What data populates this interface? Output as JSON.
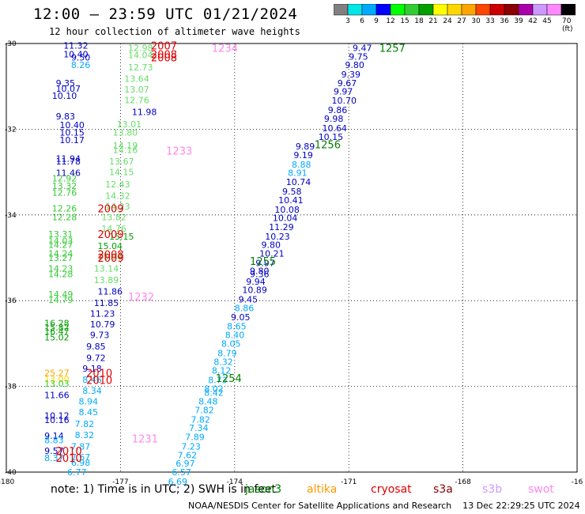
{
  "header": {
    "title": "12:00 — 23:59 UTC 01/21/2024",
    "subtitle": "12 hour collection of altimeter wave heights"
  },
  "colorbar": {
    "colors": [
      "#808080",
      "#00e5e5",
      "#00aaff",
      "#0000ff",
      "#00ff00",
      "#32cd32",
      "#00a000",
      "#ffff00",
      "#ffd700",
      "#ffa500",
      "#ff4500",
      "#cc0000",
      "#8b0000",
      "#aa00aa",
      "#cc99ff",
      "#ff88ff",
      "#000000"
    ],
    "labels": [
      "3",
      "6",
      "9",
      "12",
      "15",
      "18",
      "21",
      "24",
      "27",
      "30",
      "33",
      "36",
      "39",
      "42",
      "45",
      "70 (ft)"
    ]
  },
  "axes": {
    "lon_ticks": [
      "-180",
      "-177",
      "-174",
      "-171",
      "-168",
      "-16"
    ],
    "lat_ticks": [
      "-30",
      "-32",
      "-34",
      "-36",
      "-38",
      "-40"
    ]
  },
  "tracks": [
    {
      "label": "2007",
      "color": "#e00000",
      "lon": -176.2,
      "lat": -30.05
    },
    {
      "label": "2008",
      "color": "#e00000",
      "lon": -176.2,
      "lat": -30.25
    },
    {
      "label": "2008",
      "color": "#e00000",
      "lon": -176.2,
      "lat": -30.32
    },
    {
      "label": "1234",
      "color": "#ff88ee",
      "lon": -174.6,
      "lat": -30.1
    },
    {
      "label": "1257",
      "color": "#008000",
      "lon": -170.2,
      "lat": -30.1
    },
    {
      "label": "1256",
      "color": "#008000",
      "lon": -171.9,
      "lat": -32.35
    },
    {
      "label": "1233",
      "color": "#ff88ee",
      "lon": -175.8,
      "lat": -32.5
    },
    {
      "label": "2009",
      "color": "#e00000",
      "lon": -177.6,
      "lat": -33.85
    },
    {
      "label": "2009",
      "color": "#e00000",
      "lon": -177.6,
      "lat": -34.45
    },
    {
      "label": "2008",
      "color": "#e00000",
      "lon": -177.6,
      "lat": -34.92
    },
    {
      "label": "2009",
      "color": "#e00000",
      "lon": -177.6,
      "lat": -35.0
    },
    {
      "label": "1255",
      "color": "#008000",
      "lon": -173.6,
      "lat": -35.07
    },
    {
      "label": "1232",
      "color": "#ff88ee",
      "lon": -176.8,
      "lat": -35.9
    },
    {
      "label": "2010",
      "color": "#e00000",
      "lon": -177.9,
      "lat": -37.68
    },
    {
      "label": "2010",
      "color": "#e00000",
      "lon": -177.9,
      "lat": -37.85
    },
    {
      "label": "1254",
      "color": "#008000",
      "lon": -174.5,
      "lat": -37.8
    },
    {
      "label": "1231",
      "color": "#ff88ee",
      "lon": -176.7,
      "lat": -39.22
    },
    {
      "label": "2010",
      "color": "#e00000",
      "lon": -178.7,
      "lat": -39.5
    },
    {
      "label": "2010",
      "color": "#e00000",
      "lon": -178.7,
      "lat": -39.67
    }
  ],
  "wave_heights": [
    {
      "v": "11.32",
      "c": "#0000c0",
      "lon": -178.5,
      "lat": -30.05
    },
    {
      "v": "10.40",
      "c": "#0000c0",
      "lon": -178.5,
      "lat": -30.25
    },
    {
      "v": "9.50",
      "c": "#0000c0",
      "lon": -178.3,
      "lat": -30.32
    },
    {
      "v": "8.26",
      "c": "#00aaff",
      "lon": -178.3,
      "lat": -30.5
    },
    {
      "v": "9.35",
      "c": "#0000c0",
      "lon": -178.7,
      "lat": -30.92
    },
    {
      "v": "10.07",
      "c": "#0000c0",
      "lon": -178.7,
      "lat": -31.05
    },
    {
      "v": "10.10",
      "c": "#0000c0",
      "lon": -178.8,
      "lat": -31.22
    },
    {
      "v": "9.83",
      "c": "#0000c0",
      "lon": -178.7,
      "lat": -31.7
    },
    {
      "v": "10.40",
      "c": "#0000c0",
      "lon": -178.6,
      "lat": -31.9
    },
    {
      "v": "10.15",
      "c": "#0000c0",
      "lon": -178.6,
      "lat": -32.08
    },
    {
      "v": "10.17",
      "c": "#0000c0",
      "lon": -178.6,
      "lat": -32.25
    },
    {
      "v": "11.94",
      "c": "#0000c0",
      "lon": -178.7,
      "lat": -32.68
    },
    {
      "v": "11.78",
      "c": "#0000c0",
      "lon": -178.7,
      "lat": -32.75
    },
    {
      "v": "11.46",
      "c": "#0000c0",
      "lon": -178.7,
      "lat": -33.02
    },
    {
      "v": "12.92",
      "c": "#33cc33",
      "lon": -178.8,
      "lat": -33.15
    },
    {
      "v": "13.32",
      "c": "#33cc33",
      "lon": -178.8,
      "lat": -33.32
    },
    {
      "v": "12.76",
      "c": "#33cc33",
      "lon": -178.8,
      "lat": -33.48
    },
    {
      "v": "12.26",
      "c": "#33cc33",
      "lon": -178.8,
      "lat": -33.85
    },
    {
      "v": "12.28",
      "c": "#33cc33",
      "lon": -178.8,
      "lat": -34.05
    },
    {
      "v": "13.31",
      "c": "#33cc33",
      "lon": -178.9,
      "lat": -34.45
    },
    {
      "v": "14.03",
      "c": "#33cc33",
      "lon": -178.9,
      "lat": -34.6
    },
    {
      "v": "14.27",
      "c": "#33cc33",
      "lon": -178.9,
      "lat": -34.7
    },
    {
      "v": "14.24",
      "c": "#33cc33",
      "lon": -178.9,
      "lat": -34.9
    },
    {
      "v": "13.27",
      "c": "#33cc33",
      "lon": -178.9,
      "lat": -35.0
    },
    {
      "v": "14.23",
      "c": "#33cc33",
      "lon": -178.9,
      "lat": -35.25
    },
    {
      "v": "14.28",
      "c": "#33cc33",
      "lon": -178.9,
      "lat": -35.38
    },
    {
      "v": "14.49",
      "c": "#33cc33",
      "lon": -178.9,
      "lat": -35.85
    },
    {
      "v": "14.79",
      "c": "#33cc33",
      "lon": -178.9,
      "lat": -35.98
    },
    {
      "v": "16.28",
      "c": "#00a000",
      "lon": -179.0,
      "lat": -36.52
    },
    {
      "v": "15.82",
      "c": "#00a000",
      "lon": -179.0,
      "lat": -36.62
    },
    {
      "v": "16.47",
      "c": "#00a000",
      "lon": -179.0,
      "lat": -36.72
    },
    {
      "v": "15.02",
      "c": "#00a000",
      "lon": -179.0,
      "lat": -36.85
    },
    {
      "v": "25.27",
      "c": "#ffa500",
      "lon": -179.0,
      "lat": -37.68
    },
    {
      "v": "13.00",
      "c": "#ffd700",
      "lon": -179.0,
      "lat": -37.83
    },
    {
      "v": "13.03",
      "c": "#33cc33",
      "lon": -179.0,
      "lat": -37.93
    },
    {
      "v": "11.66",
      "c": "#0000c0",
      "lon": -179.0,
      "lat": -38.2
    },
    {
      "v": "10.12",
      "c": "#0000c0",
      "lon": -179.0,
      "lat": -38.68
    },
    {
      "v": "10.16",
      "c": "#0000c0",
      "lon": -179.0,
      "lat": -38.78
    },
    {
      "v": "9.14",
      "c": "#0000c0",
      "lon": -179.0,
      "lat": -39.15
    },
    {
      "v": "8.83",
      "c": "#00aaff",
      "lon": -179.0,
      "lat": -39.25
    },
    {
      "v": "9.57",
      "c": "#0000c0",
      "lon": -179.0,
      "lat": -39.5
    },
    {
      "v": "8.37",
      "c": "#00aaff",
      "lon": -179.0,
      "lat": -39.67
    },
    {
      "v": "12.98",
      "c": "#66dd66",
      "lon": -176.8,
      "lat": -30.1
    },
    {
      "v": "14.04",
      "c": "#66dd66",
      "lon": -176.8,
      "lat": -30.27
    },
    {
      "v": "12.73",
      "c": "#66dd66",
      "lon": -176.8,
      "lat": -30.55
    },
    {
      "v": "13.64",
      "c": "#66dd66",
      "lon": -176.9,
      "lat": -30.82
    },
    {
      "v": "13.07",
      "c": "#66dd66",
      "lon": -176.9,
      "lat": -31.07
    },
    {
      "v": "12.76",
      "c": "#66dd66",
      "lon": -176.9,
      "lat": -31.32
    },
    {
      "v": "11.98",
      "c": "#0000c0",
      "lon": -176.7,
      "lat": -31.6
    },
    {
      "v": "13.01",
      "c": "#66dd66",
      "lon": -177.1,
      "lat": -31.88
    },
    {
      "v": "13.80",
      "c": "#66dd66",
      "lon": -177.2,
      "lat": -32.08
    },
    {
      "v": "14.19",
      "c": "#66dd66",
      "lon": -177.2,
      "lat": -32.38
    },
    {
      "v": "14.16",
      "c": "#66dd66",
      "lon": -177.2,
      "lat": -32.48
    },
    {
      "v": "13.67",
      "c": "#66dd66",
      "lon": -177.3,
      "lat": -32.75
    },
    {
      "v": "14.15",
      "c": "#66dd66",
      "lon": -177.3,
      "lat": -33.0
    },
    {
      "v": "12.43",
      "c": "#66dd66",
      "lon": -177.4,
      "lat": -33.28
    },
    {
      "v": "14.32",
      "c": "#66dd66",
      "lon": -177.4,
      "lat": -33.55
    },
    {
      "v": "14.23",
      "c": "#66dd66",
      "lon": -177.4,
      "lat": -33.8
    },
    {
      "v": "13.82",
      "c": "#66dd66",
      "lon": -177.5,
      "lat": -34.05
    },
    {
      "v": "14.76",
      "c": "#66dd66",
      "lon": -177.5,
      "lat": -34.32
    },
    {
      "v": "15.15",
      "c": "#00a000",
      "lon": -177.3,
      "lat": -34.5
    },
    {
      "v": "15.04",
      "c": "#00a000",
      "lon": -177.6,
      "lat": -34.72
    },
    {
      "v": "15.30",
      "c": "#66dd66",
      "lon": -177.6,
      "lat": -34.97
    },
    {
      "v": "13.14",
      "c": "#66dd66",
      "lon": -177.7,
      "lat": -35.25
    },
    {
      "v": "13.89",
      "c": "#66dd66",
      "lon": -177.7,
      "lat": -35.52
    },
    {
      "v": "11.86",
      "c": "#0000c0",
      "lon": -177.6,
      "lat": -35.78
    },
    {
      "v": "11.85",
      "c": "#0000c0",
      "lon": -177.7,
      "lat": -36.05
    },
    {
      "v": "11.23",
      "c": "#0000c0",
      "lon": -177.8,
      "lat": -36.3
    },
    {
      "v": "10.79",
      "c": "#0000c0",
      "lon": -177.8,
      "lat": -36.55
    },
    {
      "v": "9.73",
      "c": "#0000c0",
      "lon": -177.8,
      "lat": -36.8
    },
    {
      "v": "9.85",
      "c": "#0000c0",
      "lon": -177.9,
      "lat": -37.07
    },
    {
      "v": "9.72",
      "c": "#0000c0",
      "lon": -177.9,
      "lat": -37.33
    },
    {
      "v": "9.18",
      "c": "#0000c0",
      "lon": -178.0,
      "lat": -37.58
    },
    {
      "v": "8.46",
      "c": "#00aaff",
      "lon": -178.0,
      "lat": -37.84
    },
    {
      "v": "8.34",
      "c": "#00aaff",
      "lon": -178.0,
      "lat": -38.1
    },
    {
      "v": "8.94",
      "c": "#00aaff",
      "lon": -178.1,
      "lat": -38.35
    },
    {
      "v": "8.45",
      "c": "#00aaff",
      "lon": -178.1,
      "lat": -38.6
    },
    {
      "v": "7.82",
      "c": "#00aaff",
      "lon": -178.2,
      "lat": -38.87
    },
    {
      "v": "8.32",
      "c": "#00aaff",
      "lon": -178.2,
      "lat": -39.13
    },
    {
      "v": "7.87",
      "c": "#00aaff",
      "lon": -178.3,
      "lat": -39.4
    },
    {
      "v": "7.67",
      "c": "#00aaff",
      "lon": -178.3,
      "lat": -39.65
    },
    {
      "v": "6.98",
      "c": "#00aaff",
      "lon": -178.3,
      "lat": -39.78
    },
    {
      "v": "6.77",
      "c": "#00aaff",
      "lon": -178.4,
      "lat": -40.0
    },
    {
      "v": "9.47",
      "c": "#0000c0",
      "lon": -170.9,
      "lat": -30.1
    },
    {
      "v": "9.75",
      "c": "#0000c0",
      "lon": -171.0,
      "lat": -30.3
    },
    {
      "v": "9.80",
      "c": "#0000c0",
      "lon": -171.1,
      "lat": -30.5
    },
    {
      "v": "9.39",
      "c": "#0000c0",
      "lon": -171.2,
      "lat": -30.72
    },
    {
      "v": "9.67",
      "c": "#0000c0",
      "lon": -171.3,
      "lat": -30.92
    },
    {
      "v": "9.97",
      "c": "#0000c0",
      "lon": -171.4,
      "lat": -31.12
    },
    {
      "v": "10.70",
      "c": "#0000c0",
      "lon": -171.45,
      "lat": -31.33
    },
    {
      "v": "9.86",
      "c": "#0000c0",
      "lon": -171.55,
      "lat": -31.55
    },
    {
      "v": "9.98",
      "c": "#0000c0",
      "lon": -171.65,
      "lat": -31.75
    },
    {
      "v": "10.64",
      "c": "#0000c0",
      "lon": -171.7,
      "lat": -31.97
    },
    {
      "v": "10.15",
      "c": "#0000c0",
      "lon": -171.8,
      "lat": -32.18
    },
    {
      "v": "9.89",
      "c": "#0000c0",
      "lon": -172.4,
      "lat": -32.4
    },
    {
      "v": "9.19",
      "c": "#0000c0",
      "lon": -172.45,
      "lat": -32.6
    },
    {
      "v": "8.88",
      "c": "#00aaff",
      "lon": -172.5,
      "lat": -32.82
    },
    {
      "v": "8.91",
      "c": "#00aaff",
      "lon": -172.6,
      "lat": -33.02
    },
    {
      "v": "10.74",
      "c": "#0000c0",
      "lon": -172.65,
      "lat": -33.23
    },
    {
      "v": "9.58",
      "c": "#0000c0",
      "lon": -172.75,
      "lat": -33.45
    },
    {
      "v": "10.41",
      "c": "#0000c0",
      "lon": -172.85,
      "lat": -33.65
    },
    {
      "v": "10.08",
      "c": "#0000c0",
      "lon": -172.95,
      "lat": -33.87
    },
    {
      "v": "10.04",
      "c": "#0000c0",
      "lon": -173.0,
      "lat": -34.07
    },
    {
      "v": "11.29",
      "c": "#0000c0",
      "lon": -173.1,
      "lat": -34.28
    },
    {
      "v": "10.23",
      "c": "#0000c0",
      "lon": -173.2,
      "lat": -34.5
    },
    {
      "v": "9.80",
      "c": "#0000c0",
      "lon": -173.3,
      "lat": -34.7
    },
    {
      "v": "10.21",
      "c": "#0000c0",
      "lon": -173.35,
      "lat": -34.9
    },
    {
      "v": "9.97",
      "c": "#0000c0",
      "lon": -173.45,
      "lat": -35.12
    },
    {
      "v": "9.80",
      "c": "#0000c0",
      "lon": -173.6,
      "lat": -35.3
    },
    {
      "v": "9.36",
      "c": "#0000c0",
      "lon": -173.6,
      "lat": -35.38
    },
    {
      "v": "9.94",
      "c": "#0000c0",
      "lon": -173.7,
      "lat": -35.55
    },
    {
      "v": "10.89",
      "c": "#0000c0",
      "lon": -173.8,
      "lat": -35.75
    },
    {
      "v": "9.45",
      "c": "#0000c0",
      "lon": -173.9,
      "lat": -35.97
    },
    {
      "v": "8.86",
      "c": "#00aaff",
      "lon": -174.0,
      "lat": -36.17
    },
    {
      "v": "9.05",
      "c": "#0000c0",
      "lon": -174.1,
      "lat": -36.38
    },
    {
      "v": "8.65",
      "c": "#00aaff",
      "lon": -174.2,
      "lat": -36.6
    },
    {
      "v": "8.40",
      "c": "#00aaff",
      "lon": -174.25,
      "lat": -36.8
    },
    {
      "v": "8.05",
      "c": "#00aaff",
      "lon": -174.35,
      "lat": -37.0
    },
    {
      "v": "8.79",
      "c": "#00aaff",
      "lon": -174.45,
      "lat": -37.22
    },
    {
      "v": "8.32",
      "c": "#00aaff",
      "lon": -174.55,
      "lat": -37.43
    },
    {
      "v": "8.12",
      "c": "#00aaff",
      "lon": -174.6,
      "lat": -37.63
    },
    {
      "v": "8.73",
      "c": "#00aaff",
      "lon": -174.7,
      "lat": -37.85
    },
    {
      "v": "8.02",
      "c": "#00aaff",
      "lon": -174.8,
      "lat": -38.05
    },
    {
      "v": "8.42",
      "c": "#00aaff",
      "lon": -174.8,
      "lat": -38.15
    },
    {
      "v": "8.48",
      "c": "#00aaff",
      "lon": -174.95,
      "lat": -38.35
    },
    {
      "v": "7.82",
      "c": "#00aaff",
      "lon": -175.05,
      "lat": -38.55
    },
    {
      "v": "7.82",
      "c": "#00aaff",
      "lon": -175.15,
      "lat": -38.77
    },
    {
      "v": "7.34",
      "c": "#00aaff",
      "lon": -175.2,
      "lat": -38.97
    },
    {
      "v": "7.89",
      "c": "#00aaff",
      "lon": -175.3,
      "lat": -39.18
    },
    {
      "v": "7.23",
      "c": "#00aaff",
      "lon": -175.4,
      "lat": -39.4
    },
    {
      "v": "7.62",
      "c": "#00aaff",
      "lon": -175.5,
      "lat": -39.6
    },
    {
      "v": "6.97",
      "c": "#00aaff",
      "lon": -175.55,
      "lat": -39.8
    },
    {
      "v": "6.57",
      "c": "#00aaff",
      "lon": -175.65,
      "lat": -40.0
    },
    {
      "v": "6.69",
      "c": "#00aaff",
      "lon": -175.75,
      "lat": -40.22
    },
    {
      "v": "7.11",
      "c": "#00aaff",
      "lon": -175.85,
      "lat": -40.43
    }
  ],
  "legend": {
    "note": "note:  1) Time is in UTC; 2) SWH is in feet",
    "items": [
      {
        "label": "jason3",
        "color": "#008000"
      },
      {
        "label": "altika",
        "color": "#ff9900"
      },
      {
        "label": "cryosat",
        "color": "#e00000"
      },
      {
        "label": "s3a",
        "color": "#8b0000"
      },
      {
        "label": "s3b",
        "color": "#cc99ff"
      },
      {
        "label": "swot",
        "color": "#ff88ee"
      }
    ]
  },
  "credit": "NOAA/NESDIS Center for Satellite Applications and Research    13 Dec 22:29:25 UTC 2024"
}
